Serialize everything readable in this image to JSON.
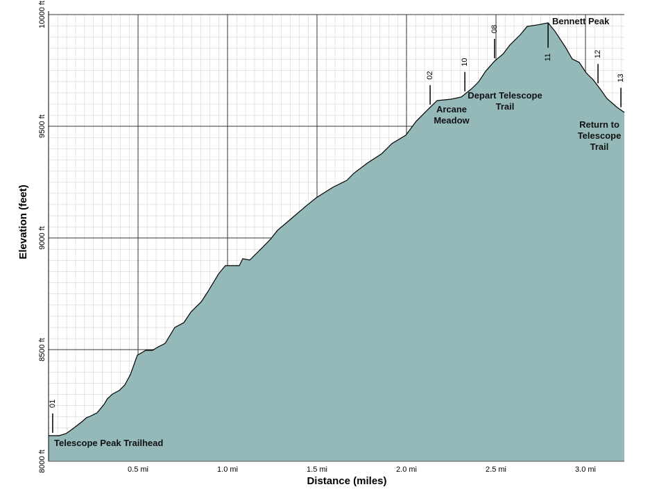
{
  "chart_data": {
    "type": "area",
    "x_label": "Distance (miles)",
    "y_label": "Elevation (feet)",
    "x": [
      0,
      0.058,
      0.097,
      0.136,
      0.186,
      0.213,
      0.233,
      0.271,
      0.31,
      0.329,
      0.357,
      0.395,
      0.426,
      0.457,
      0.496,
      0.543,
      0.581,
      0.612,
      0.651,
      0.705,
      0.756,
      0.795,
      0.853,
      0.891,
      0.95,
      0.988,
      1.066,
      1.085,
      1.124,
      1.182,
      1.24,
      1.279,
      1.357,
      1.434,
      1.496,
      1.589,
      1.667,
      1.705,
      1.783,
      1.86,
      1.919,
      1.996,
      2.054,
      2.112,
      2.171,
      2.248,
      2.306,
      2.364,
      2.403,
      2.442,
      2.492,
      2.539,
      2.578,
      2.636,
      2.674,
      2.733,
      2.791,
      2.829,
      2.888,
      2.926,
      2.965,
      3.004,
      3.043,
      3.081,
      3.12,
      3.178,
      3.217
    ],
    "values": [
      8115,
      8115,
      8124,
      8146,
      8177,
      8196,
      8202,
      8217,
      8255,
      8280,
      8301,
      8317,
      8342,
      8388,
      8475,
      8497,
      8497,
      8512,
      8528,
      8599,
      8621,
      8668,
      8714,
      8761,
      8839,
      8876,
      8876,
      8907,
      8901,
      8947,
      8994,
      9034,
      9087,
      9140,
      9180,
      9227,
      9258,
      9289,
      9336,
      9376,
      9423,
      9460,
      9522,
      9569,
      9615,
      9621,
      9631,
      9668,
      9699,
      9746,
      9792,
      9823,
      9864,
      9910,
      9947,
      9954,
      9963,
      9926,
      9854,
      9801,
      9786,
      9739,
      9708,
      9668,
      9624,
      9584,
      9562
    ],
    "color": "#95b9b9",
    "xlim": [
      0,
      3.217
    ],
    "ylim": [
      8000,
      10000
    ],
    "xticks": [
      {
        "value": 0.5,
        "label": "0.5 mi"
      },
      {
        "value": 1.0,
        "label": "1.0 mi"
      },
      {
        "value": 1.5,
        "label": "1.5 mi"
      },
      {
        "value": 2.0,
        "label": "2.0 mi"
      },
      {
        "value": 2.5,
        "label": "2.5 mi"
      },
      {
        "value": 3.0,
        "label": "3.0 mi"
      }
    ],
    "yticks": [
      {
        "value": 8000,
        "label": "8000 ft"
      },
      {
        "value": 8500,
        "label": "8500 ft"
      },
      {
        "value": 9000,
        "label": "9000 ft"
      },
      {
        "value": 9500,
        "label": "9500 ft"
      },
      {
        "value": 10000,
        "label": "10000 ft"
      }
    ],
    "grid": true,
    "minor_grid_divisions": 10,
    "waypoints": [
      {
        "label": "01",
        "x": 0.023
      },
      {
        "label": "02",
        "x": 2.132
      },
      {
        "label": "10",
        "x": 2.326
      },
      {
        "label": "08",
        "x": 2.492
      },
      {
        "label": "11",
        "x": 2.791
      },
      {
        "label": "12",
        "x": 3.07
      },
      {
        "label": "13",
        "x": 3.198
      }
    ],
    "annotations": [
      "Telescope Peak Trailhead",
      "Arcane Meadow",
      "Depart Telescope Trail",
      "Bennett Peak",
      "Return to Telescope Trail"
    ]
  }
}
